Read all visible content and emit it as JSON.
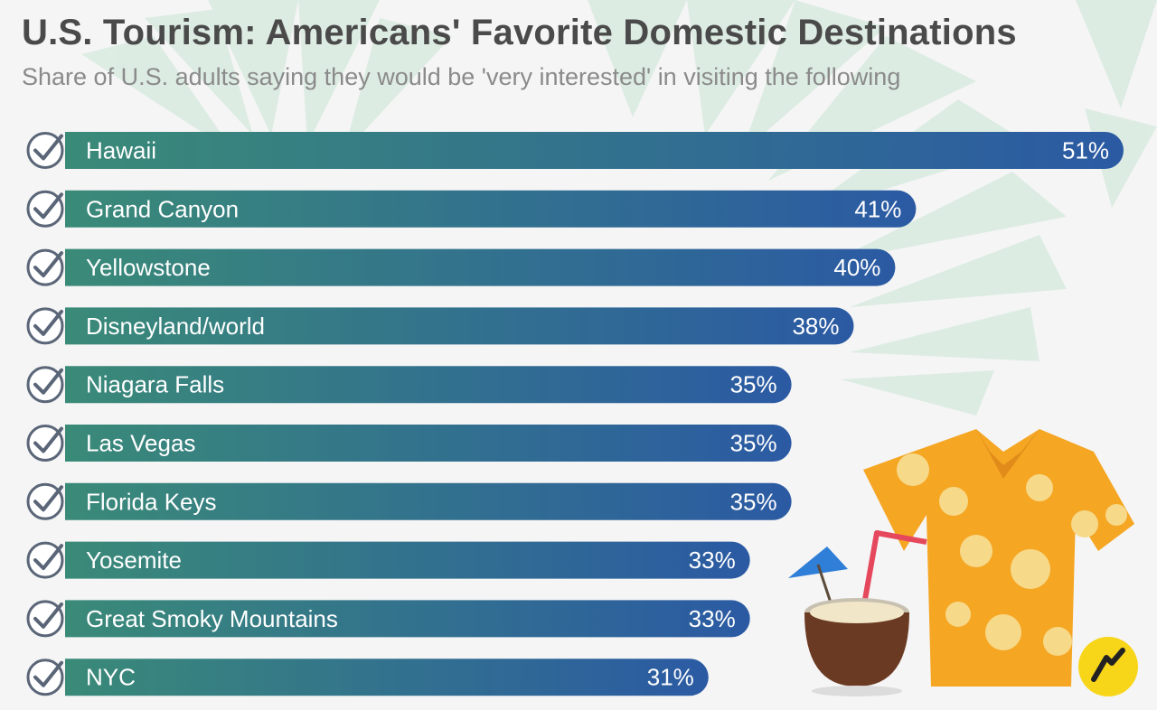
{
  "header": {
    "title": "U.S. Tourism: Americans' Favorite Domestic Destinations",
    "subtitle": "Share of U.S. adults saying they would be 'very interested' in visiting the following"
  },
  "colors": {
    "bar_start": "#3a8a78",
    "bar_end": "#2b5aa3",
    "check_ring": "#5a6678",
    "title": "#4a4a4a",
    "subtitle": "#8a8a8a"
  },
  "chart_data": {
    "type": "bar",
    "orientation": "horizontal",
    "categories": [
      "Hawaii",
      "Grand Canyon",
      "Yellowstone",
      "Disneyland/world",
      "Niagara Falls",
      "Las Vegas",
      "Florida Keys",
      "Yosemite",
      "Great Smoky Mountains",
      "NYC"
    ],
    "values": [
      51,
      41,
      40,
      38,
      35,
      35,
      35,
      33,
      33,
      31
    ],
    "value_labels": [
      "51%",
      "41%",
      "40%",
      "38%",
      "35%",
      "35%",
      "35%",
      "33%",
      "33%",
      "31%"
    ],
    "unit": "%",
    "xlim": [
      0,
      51
    ],
    "grid": false,
    "legend": "none"
  },
  "icons": {
    "row_marker": "check-circle-icon",
    "decoration": [
      "palm-leaves",
      "hawaiian-shirt",
      "coconut-drink",
      "cocktail-umbrella",
      "straw"
    ],
    "brand": "statista-style-logo"
  }
}
